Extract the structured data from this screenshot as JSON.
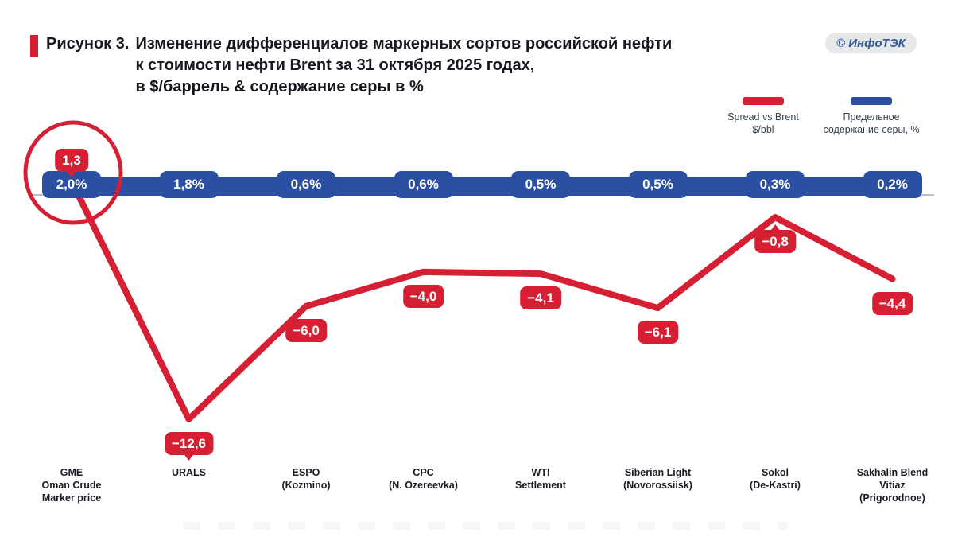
{
  "header": {
    "figure_prefix": "Рисунок 3.",
    "title_lines": [
      "Изменение дифференциалов маркерных сортов российской нефти",
      "к стоимости нефти Brent за 31 октября 2025 годах,",
      "в $/баррель & содержание серы в %"
    ],
    "logo_text": "© ИнфоТЭК"
  },
  "legend": {
    "items": [
      {
        "color": "#d61f33",
        "lines": [
          "Spread vs Brent",
          "$/bbl"
        ]
      },
      {
        "color": "#2b4fa2",
        "lines": [
          "Предельное",
          "содержание серы, %"
        ]
      }
    ]
  },
  "chart_data": {
    "type": "line",
    "title": "Изменение дифференциалов маркерных сортов российской нефти к стоимости нефти Brent за 31 октября 2025, в $/баррель & содержание серы в %",
    "categories": [
      [
        "GME",
        "Oman Crude",
        "Marker price"
      ],
      [
        "URALS"
      ],
      [
        "ESPO",
        "(Kozmino)"
      ],
      [
        "CPC",
        "(N. Ozereevka)"
      ],
      [
        "WTI",
        "Settlement"
      ],
      [
        "Siberian Light",
        "(Novorossiisk)"
      ],
      [
        "Sokol",
        "(De-Kastri)"
      ],
      [
        "Sakhalin Blend",
        "Vitiaz",
        "(Prigorodnoe)"
      ]
    ],
    "series": [
      {
        "name": "Spread vs Brent $/bbl",
        "type": "line",
        "color": "#d61f33",
        "values": [
          1.3,
          -12.6,
          -6.0,
          -4.0,
          -4.1,
          -6.1,
          -0.8,
          -4.4
        ],
        "labels": [
          "1,3",
          "−12,6",
          "−6,0",
          "−4,0",
          "−4,1",
          "−6,1",
          "−0,8",
          "−4,4"
        ]
      },
      {
        "name": "Предельное содержание серы, %",
        "type": "band",
        "color": "#2b4fa2",
        "values": [
          2.0,
          1.8,
          0.6,
          0.6,
          0.5,
          0.5,
          0.3,
          0.2
        ],
        "labels": [
          "2,0%",
          "1,8%",
          "0,6%",
          "0,6%",
          "0,5%",
          "0,5%",
          "0,3%",
          "0,2%"
        ]
      }
    ],
    "annotations": [
      "red circle highlighting first point (GME Oman: 1,3 / 2,0%)"
    ],
    "legend_position": "top-right",
    "grid": false
  }
}
